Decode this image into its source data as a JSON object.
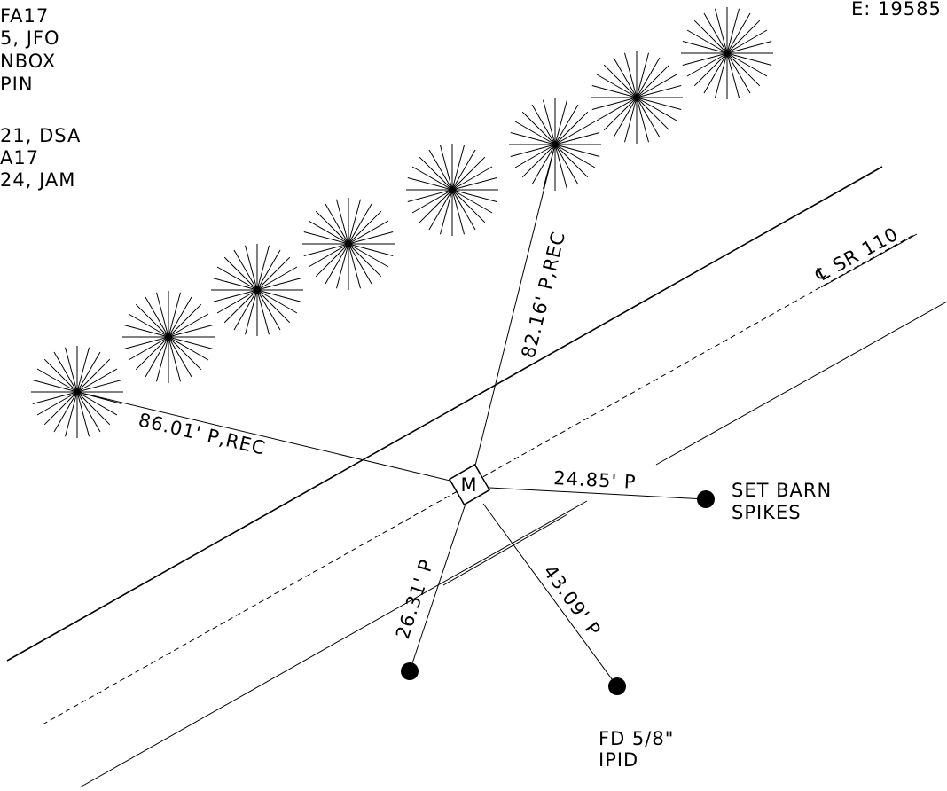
{
  "notes_top_left": {
    "lines_group_a": [
      "FA17",
      "5, JFO",
      "NBOX",
      "PIN"
    ],
    "lines_group_b": [
      "21, DSA",
      "A17",
      "24, JAM"
    ]
  },
  "coordinate_fragment": "E: 19585",
  "centerline_label": "℄ SR 110",
  "monument_label": "M",
  "distances": {
    "to_tree_left": "86.01' P,REC",
    "to_tree_upper": "82.16' P,REC",
    "to_barn_spikes": "24.85' P",
    "to_lower_left_pin": "26.31' P",
    "to_iron_pin": "43.09' P"
  },
  "point_labels": {
    "barn_spikes": [
      "SET BARN",
      "SPIKES"
    ],
    "iron_pin": [
      "FD 5/8\"",
      "IPID"
    ]
  }
}
